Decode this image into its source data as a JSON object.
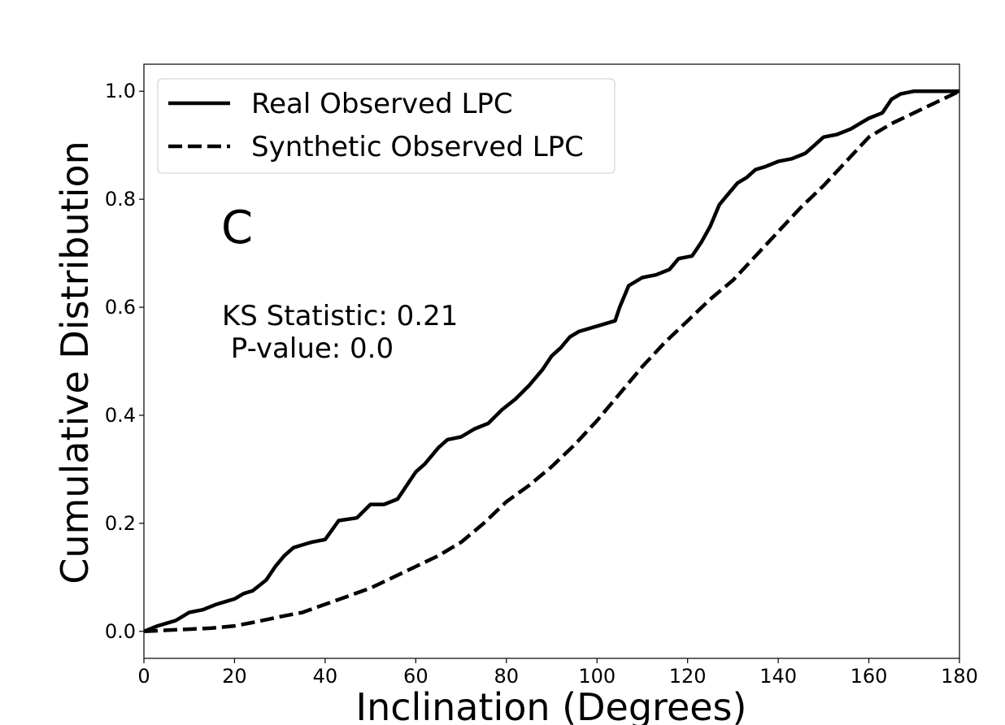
{
  "chart_data": {
    "type": "line",
    "xlabel": "Inclination (Degrees)",
    "ylabel": "Cumulative Distribution",
    "xlim": [
      0,
      180
    ],
    "ylim": [
      -0.05,
      1.05
    ],
    "x_ticks": [
      "0",
      "20",
      "40",
      "60",
      "80",
      "100",
      "120",
      "140",
      "160",
      "180"
    ],
    "y_ticks": [
      "0.0",
      "0.2",
      "0.4",
      "0.6",
      "0.8",
      "1.0"
    ],
    "grid": false,
    "legend_position": "top-left",
    "series": [
      {
        "name": "Real Observed LPC",
        "style": "solid",
        "color": "#000000",
        "x": [
          0,
          3,
          5,
          7,
          10,
          13,
          16,
          18,
          20,
          22,
          24,
          27,
          29,
          31,
          33,
          35,
          37,
          40,
          43,
          47,
          50,
          53,
          56,
          58,
          60,
          62,
          65,
          67,
          70,
          73,
          76,
          79,
          82,
          85,
          88,
          90,
          92,
          94,
          96,
          100,
          104,
          105,
          107,
          110,
          113,
          116,
          118,
          121,
          123,
          125,
          127,
          129,
          131,
          133,
          135,
          137,
          140,
          143,
          146,
          148,
          150,
          153,
          156,
          158,
          160,
          163,
          165,
          167,
          170,
          180
        ],
        "y": [
          0.0,
          0.01,
          0.015,
          0.02,
          0.035,
          0.04,
          0.05,
          0.055,
          0.06,
          0.07,
          0.075,
          0.095,
          0.12,
          0.14,
          0.155,
          0.16,
          0.165,
          0.17,
          0.205,
          0.21,
          0.235,
          0.235,
          0.245,
          0.27,
          0.295,
          0.31,
          0.34,
          0.355,
          0.36,
          0.375,
          0.385,
          0.41,
          0.43,
          0.455,
          0.485,
          0.51,
          0.525,
          0.545,
          0.555,
          0.565,
          0.575,
          0.6,
          0.64,
          0.655,
          0.66,
          0.67,
          0.69,
          0.695,
          0.72,
          0.75,
          0.79,
          0.81,
          0.83,
          0.84,
          0.855,
          0.86,
          0.87,
          0.875,
          0.885,
          0.9,
          0.915,
          0.92,
          0.93,
          0.94,
          0.95,
          0.96,
          0.985,
          0.995,
          1.0,
          1.0
        ]
      },
      {
        "name": "Synthetic Observed LPC",
        "style": "dashed",
        "color": "#000000",
        "x": [
          0,
          5,
          10,
          15,
          20,
          25,
          30,
          35,
          40,
          45,
          50,
          55,
          60,
          65,
          70,
          75,
          80,
          85,
          90,
          95,
          100,
          105,
          110,
          115,
          120,
          125,
          130,
          135,
          140,
          145,
          150,
          155,
          160,
          165,
          170,
          175,
          180
        ],
        "y": [
          0.0,
          0.002,
          0.004,
          0.006,
          0.01,
          0.018,
          0.027,
          0.035,
          0.05,
          0.065,
          0.08,
          0.1,
          0.12,
          0.14,
          0.165,
          0.2,
          0.24,
          0.27,
          0.305,
          0.345,
          0.39,
          0.44,
          0.49,
          0.535,
          0.575,
          0.615,
          0.65,
          0.695,
          0.74,
          0.785,
          0.825,
          0.87,
          0.915,
          0.94,
          0.96,
          0.98,
          1.0
        ]
      }
    ],
    "annotations": {
      "panel_letter": "C",
      "ks_statistic": "KS Statistic: 0.21",
      "p_value": " P-value: 0.0"
    }
  }
}
